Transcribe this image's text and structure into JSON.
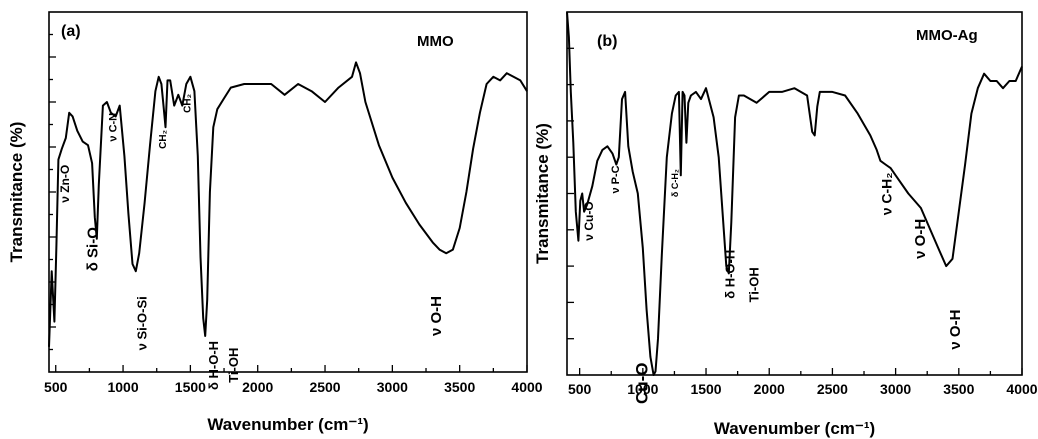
{
  "chart_data": [
    {
      "type": "line",
      "panel_label": "(a)",
      "title": "MMO",
      "xlabel": "Wavenumber (cm⁻¹)",
      "ylabel": "Transmitance (%)",
      "xlim": [
        450,
        4000
      ],
      "ylim": [
        0,
        1
      ],
      "x_ticks": [
        500,
        1000,
        1500,
        2000,
        2500,
        3000,
        3500,
        4000
      ],
      "y_ticks_labeled": false,
      "grid": false,
      "series": [
        {
          "x": [
            450,
            470,
            490,
            505,
            520,
            545,
            575,
            600,
            625,
            660,
            700,
            740,
            770,
            790,
            805,
            820,
            850,
            880,
            910,
            945,
            975,
            1010,
            1040,
            1070,
            1095,
            1120,
            1160,
            1200,
            1240,
            1265,
            1285,
            1300,
            1315,
            1330,
            1350,
            1380,
            1410,
            1440,
            1470,
            1500,
            1530,
            1555,
            1575,
            1595,
            1610,
            1625,
            1645,
            1670,
            1700,
            1750,
            1800,
            1900,
            2000,
            2100,
            2200,
            2300,
            2400,
            2500,
            2600,
            2700,
            2730,
            2760,
            2800,
            2900,
            3000,
            3100,
            3200,
            3300,
            3350,
            3400,
            3450,
            3500,
            3550,
            3600,
            3650,
            3700,
            3750,
            3800,
            3850,
            3900,
            3950,
            4000
          ],
          "y": [
            0.07,
            0.28,
            0.14,
            0.35,
            0.59,
            0.62,
            0.65,
            0.72,
            0.71,
            0.67,
            0.64,
            0.63,
            0.58,
            0.43,
            0.37,
            0.52,
            0.74,
            0.75,
            0.72,
            0.71,
            0.74,
            0.6,
            0.44,
            0.3,
            0.28,
            0.33,
            0.47,
            0.63,
            0.78,
            0.82,
            0.8,
            0.74,
            0.68,
            0.81,
            0.81,
            0.74,
            0.77,
            0.74,
            0.8,
            0.82,
            0.78,
            0.6,
            0.32,
            0.15,
            0.1,
            0.2,
            0.5,
            0.68,
            0.73,
            0.76,
            0.79,
            0.8,
            0.8,
            0.8,
            0.77,
            0.8,
            0.78,
            0.75,
            0.79,
            0.82,
            0.86,
            0.83,
            0.75,
            0.63,
            0.54,
            0.47,
            0.41,
            0.36,
            0.34,
            0.33,
            0.34,
            0.4,
            0.5,
            0.62,
            0.72,
            0.8,
            0.82,
            0.81,
            0.83,
            0.82,
            0.81,
            0.78
          ]
        }
      ],
      "annotations": [
        {
          "text": "ν Zn-O",
          "x": 575,
          "y": 0.47,
          "rotate": -90,
          "size": 12
        },
        {
          "text": "δ Si-O",
          "x": 780,
          "y": 0.28,
          "rotate": -90,
          "size": 15
        },
        {
          "text": "ν C-N",
          "x": 930,
          "y": 0.64,
          "rotate": -90,
          "size": 11
        },
        {
          "text": "ν Si-O-Si",
          "x": 1150,
          "y": 0.06,
          "rotate": -90,
          "size": 13
        },
        {
          "text": "CH₂",
          "x": 1300,
          "y": 0.62,
          "rotate": -90,
          "size": 10
        },
        {
          "text": "CH₂",
          "x": 1480,
          "y": 0.72,
          "rotate": -90,
          "size": 10
        },
        {
          "text": "δ H-O-H",
          "x": 1680,
          "y": -0.05,
          "rotate": -90,
          "size": 13
        },
        {
          "text": "Ti-OH",
          "x": 1830,
          "y": -0.03,
          "rotate": -90,
          "size": 13
        },
        {
          "text": "ν O-H",
          "x": 3330,
          "y": 0.1,
          "rotate": -90,
          "size": 15
        }
      ]
    },
    {
      "type": "line",
      "panel_label": "(b)",
      "title": "MMO-Ag",
      "xlabel": "Wavenumber (cm⁻¹)",
      "ylabel": "Transmitance (%)",
      "xlim": [
        400,
        4000
      ],
      "ylim": [
        0,
        1
      ],
      "x_ticks": [
        500,
        1000,
        1500,
        2000,
        2500,
        3000,
        3500,
        4000
      ],
      "y_ticks_labeled": false,
      "grid": false,
      "series": [
        {
          "x": [
            400,
            415,
            430,
            450,
            470,
            490,
            505,
            520,
            535,
            560,
            600,
            640,
            680,
            720,
            760,
            790,
            810,
            835,
            860,
            885,
            920,
            960,
            1000,
            1030,
            1060,
            1085,
            1100,
            1120,
            1150,
            1190,
            1230,
            1260,
            1285,
            1300,
            1315,
            1330,
            1345,
            1360,
            1380,
            1420,
            1460,
            1500,
            1560,
            1600,
            1630,
            1660,
            1680,
            1700,
            1730,
            1760,
            1800,
            1900,
            2000,
            2100,
            2200,
            2300,
            2340,
            2360,
            2380,
            2400,
            2500,
            2600,
            2700,
            2800,
            2850,
            2880,
            2920,
            2960,
            3000,
            3100,
            3200,
            3300,
            3350,
            3400,
            3450,
            3500,
            3550,
            3600,
            3650,
            3700,
            3750,
            3800,
            3850,
            3900,
            3950,
            4000
          ],
          "y": [
            1.0,
            0.93,
            0.78,
            0.64,
            0.45,
            0.37,
            0.48,
            0.5,
            0.45,
            0.47,
            0.52,
            0.59,
            0.62,
            0.63,
            0.61,
            0.58,
            0.6,
            0.76,
            0.78,
            0.63,
            0.56,
            0.5,
            0.35,
            0.18,
            0.05,
            0.0,
            0.01,
            0.1,
            0.33,
            0.6,
            0.72,
            0.77,
            0.78,
            0.55,
            0.78,
            0.77,
            0.64,
            0.75,
            0.77,
            0.78,
            0.76,
            0.79,
            0.71,
            0.6,
            0.45,
            0.3,
            0.28,
            0.42,
            0.71,
            0.77,
            0.77,
            0.75,
            0.78,
            0.78,
            0.79,
            0.77,
            0.67,
            0.66,
            0.74,
            0.78,
            0.78,
            0.77,
            0.72,
            0.66,
            0.62,
            0.59,
            0.58,
            0.57,
            0.55,
            0.5,
            0.46,
            0.38,
            0.34,
            0.3,
            0.32,
            0.45,
            0.58,
            0.72,
            0.79,
            0.83,
            0.81,
            0.81,
            0.79,
            0.81,
            0.81,
            0.85
          ]
        }
      ],
      "annotations": [
        {
          "text": "ν Cu-O",
          "x": 580,
          "y": 0.37,
          "rotate": -90,
          "size": 12
        },
        {
          "text": "ν P-C",
          "x": 790,
          "y": 0.5,
          "rotate": -90,
          "size": 11
        },
        {
          "text": "Cu-O",
          "x": 1000,
          "y": -0.08,
          "rotate": -90,
          "size": 17
        },
        {
          "text": "δ C-H₂",
          "x": 1260,
          "y": 0.49,
          "rotate": -90,
          "size": 9
        },
        {
          "text": "δ H-O-H",
          "x": 1700,
          "y": 0.21,
          "rotate": -90,
          "size": 13
        },
        {
          "text": "Ti-OH",
          "x": 1890,
          "y": 0.2,
          "rotate": -90,
          "size": 13
        },
        {
          "text": "ν C-H₂",
          "x": 2940,
          "y": 0.44,
          "rotate": -90,
          "size": 14
        },
        {
          "text": "ν O-H",
          "x": 3200,
          "y": 0.32,
          "rotate": -90,
          "size": 15
        },
        {
          "text": "ν O-H",
          "x": 3480,
          "y": 0.07,
          "rotate": -90,
          "size": 15
        }
      ]
    }
  ]
}
